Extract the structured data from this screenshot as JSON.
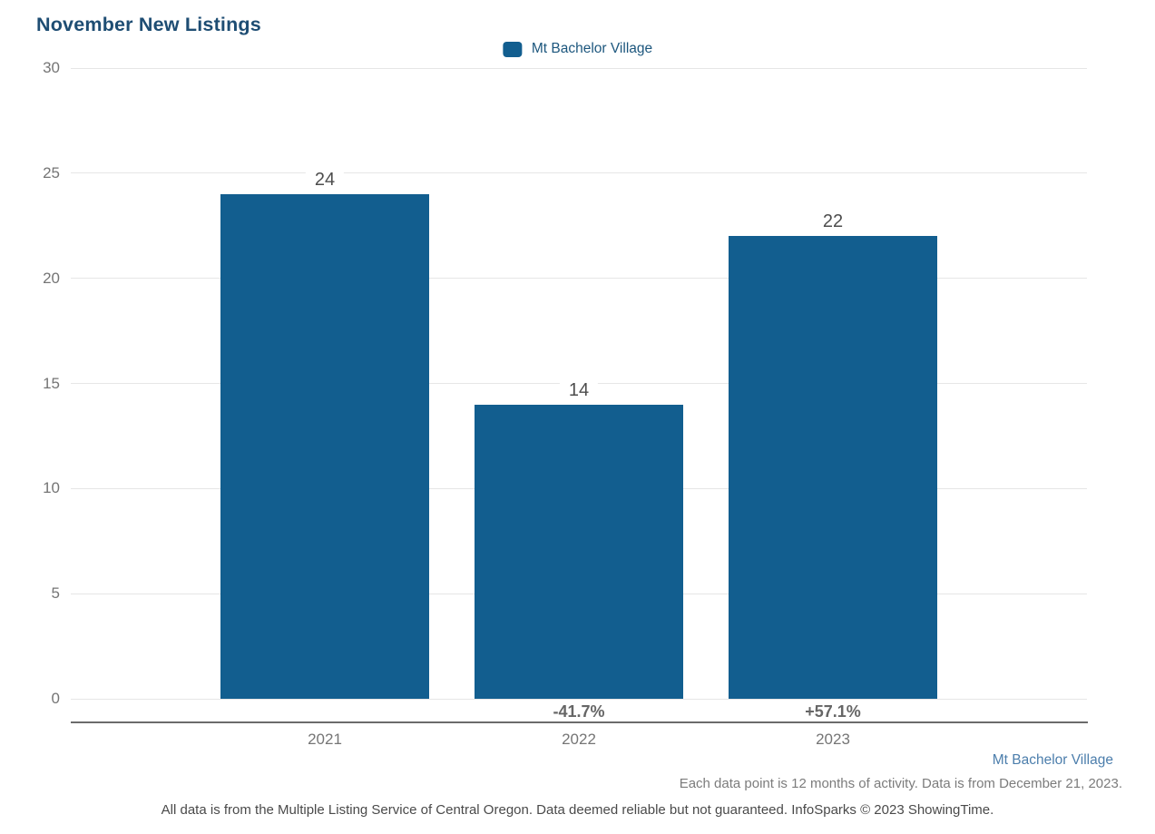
{
  "chart_data": {
    "type": "bar",
    "title": "November New Listings",
    "categories": [
      "2021",
      "2022",
      "2023"
    ],
    "values": [
      24,
      14,
      22
    ],
    "pct_change": [
      "",
      "-41.7%",
      "+57.1%"
    ],
    "yticks": [
      0,
      5,
      10,
      15,
      20,
      25,
      30
    ],
    "ylim": [
      0,
      30
    ],
    "grid": true,
    "legend_position": "top-center",
    "legend": [
      {
        "name": "Mt Bachelor Village",
        "color": "#125e8f"
      }
    ],
    "xlabel": "",
    "ylabel": ""
  },
  "colors": {
    "bar": "#125e8f",
    "title": "#1e4d73",
    "gridline": "#e6e6e6",
    "axis_line": "#6b6b6b",
    "tick_text": "#757575",
    "footer_series": "#4c7eac"
  },
  "footer": {
    "series_label": "Mt Bachelor Village",
    "note": "Each data point is 12 months of activity. Data is from December 21, 2023.",
    "disclaimer": "All data is from the Multiple Listing Service of Central Oregon. Data deemed reliable but not guaranteed. InfoSparks © 2023 ShowingTime."
  }
}
